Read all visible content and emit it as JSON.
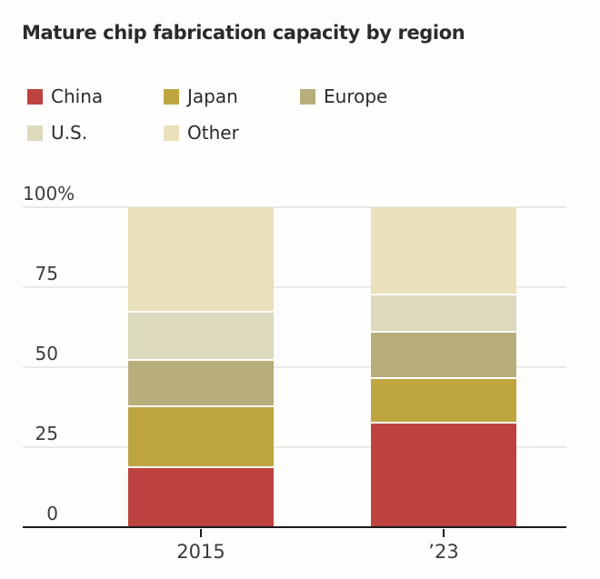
{
  "title": "Mature chip fabrication capacity by region",
  "chart_data": {
    "type": "bar",
    "stacked": true,
    "title": "Mature chip fabrication capacity by region",
    "categories": [
      "2015",
      "’23"
    ],
    "series": [
      {
        "name": "China",
        "color": "#be423f",
        "values": [
          19,
          33
        ]
      },
      {
        "name": "Japan",
        "color": "#bea540",
        "values": [
          19,
          14
        ]
      },
      {
        "name": "Europe",
        "color": "#b8ae7c",
        "values": [
          14.5,
          14.5
        ]
      },
      {
        "name": "U.S.",
        "color": "#dcd9bd",
        "values": [
          15,
          11.5
        ]
      },
      {
        "name": "Other",
        "color": "#eae0b9",
        "values": [
          32.5,
          27
        ]
      }
    ],
    "xlabel": "",
    "ylabel": "",
    "ylim": [
      0,
      100
    ],
    "yticks": [
      {
        "value": 100,
        "label": "100%"
      },
      {
        "value": 75,
        "label": "75"
      },
      {
        "value": 50,
        "label": "50"
      },
      {
        "value": 25,
        "label": "25"
      },
      {
        "value": 0,
        "label": "0"
      }
    ],
    "grid": true,
    "legend_position": "top-left",
    "legend_order": [
      "China",
      "Japan",
      "Europe",
      "U.S.",
      "Other"
    ]
  },
  "colors": {
    "background": "#fdfdfc",
    "axis": "#1c1c1c",
    "gridline": "#e9e9e7",
    "title_text": "#2b2b2b",
    "tick_text": "#3c3c3c",
    "separator": "#fdfdfc"
  }
}
